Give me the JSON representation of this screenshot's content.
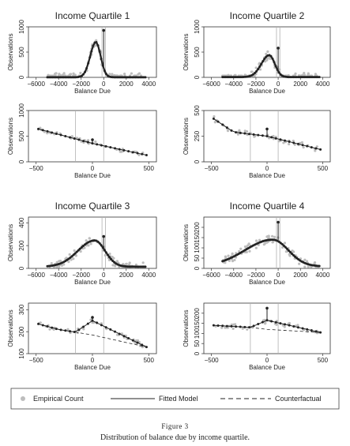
{
  "figure": {
    "caption_label": "Figure 3",
    "caption_text": "Distribution of balance due by income quartile."
  },
  "legend": {
    "empirical": "Empirical Count",
    "fitted": "Fitted Model",
    "counterfactual": "Counterfactual"
  },
  "colors": {
    "empirical": "#bdbdbd",
    "fitted": "#222222",
    "vline": "#b0b0b0"
  },
  "chart_data": [
    {
      "type": "scatter",
      "panel": "q1-wide",
      "title": "Income Quartile 1",
      "xlabel": "Balance Due",
      "ylabel": "Observations",
      "xlim": [
        -6000,
        4000
      ],
      "ylim": [
        0,
        1000
      ],
      "xticks": [
        -6000,
        -4000,
        -2000,
        0,
        2000,
        4000
      ],
      "yticks": [
        0,
        500,
        1000
      ],
      "x_range": [
        -5000,
        3700
      ],
      "peak_x": -700,
      "peak_y": 700,
      "width_left": 700,
      "width_right": 600,
      "base": 2,
      "spike": {
        "x": 0,
        "y": 930
      },
      "vlines": [
        -150,
        150
      ]
    },
    {
      "type": "scatter",
      "panel": "q2-wide",
      "title": "Income Quartile 2",
      "xlabel": "Balance Due",
      "ylabel": "Observations",
      "xlim": [
        -6000,
        4000
      ],
      "ylim": [
        0,
        1000
      ],
      "xticks": [
        -6000,
        -4000,
        -2000,
        0,
        2000,
        4000
      ],
      "yticks": [
        0,
        500,
        1000
      ],
      "x_range": [
        -5000,
        3700
      ],
      "peak_x": -800,
      "peak_y": 440,
      "width_left": 1000,
      "width_right": 700,
      "base": 5,
      "spike": {
        "x": 0,
        "y": 580
      },
      "vlines": [
        -150,
        150
      ]
    },
    {
      "type": "scatter",
      "panel": "q1-zoom",
      "xlabel": "Balance Due",
      "ylabel": "Observations",
      "xlim": [
        -500,
        500
      ],
      "ylim": [
        0,
        1000
      ],
      "xticks": [
        -500,
        0,
        500
      ],
      "yticks": [
        0,
        500,
        1000
      ],
      "line_left": [
        [
          -480,
          640
        ],
        [
          0,
          360
        ]
      ],
      "line_right": [
        [
          0,
          360
        ],
        [
          480,
          130
        ]
      ],
      "spike": {
        "x": 0,
        "y": 430
      },
      "vlines": [
        -150,
        100
      ]
    },
    {
      "type": "scatter",
      "panel": "q2-zoom",
      "xlabel": "Balance Due",
      "ylabel": "Observations",
      "xlim": [
        -500,
        500
      ],
      "ylim": [
        0,
        500
      ],
      "xticks": [
        -500,
        0,
        500
      ],
      "yticks": [
        0,
        250,
        500
      ],
      "line_left": [
        [
          -480,
          420
        ],
        [
          -300,
          290
        ],
        [
          0,
          250
        ]
      ],
      "line_right": [
        [
          0,
          250
        ],
        [
          480,
          120
        ]
      ],
      "spike": {
        "x": 0,
        "y": 320
      },
      "vlines": [
        -150,
        100
      ]
    },
    {
      "type": "scatter",
      "panel": "q3-wide",
      "title": "Income Quartile 3",
      "xlabel": "Balance Due",
      "ylabel": "Observations",
      "xlim": [
        -6000,
        4000
      ],
      "ylim": [
        0,
        450
      ],
      "xticks": [
        -6000,
        -4000,
        -2000,
        0,
        2000,
        4000
      ],
      "yticks": [
        0,
        200,
        400
      ],
      "x_range": [
        -5000,
        3700
      ],
      "peak_x": -800,
      "peak_y": 245,
      "width_left": 2100,
      "width_right": 1300,
      "base": 15,
      "spike": {
        "x": 0,
        "y": 280
      },
      "vlines": [
        -150,
        150
      ]
    },
    {
      "type": "scatter",
      "panel": "q4-wide",
      "title": "Income Quartile 4",
      "xlabel": "Balance Due",
      "ylabel": "Observations",
      "xlim": [
        -6000,
        4000
      ],
      "ylim": [
        0,
        250
      ],
      "xticks": [
        -6000,
        -4000,
        -2000,
        0,
        2000,
        4000
      ],
      "yticks": [
        0,
        50,
        100,
        150,
        200
      ],
      "x_range": [
        -5000,
        3700
      ],
      "peak_x": -500,
      "peak_y": 140,
      "width_left": 3500,
      "width_right": 2000,
      "base": 10,
      "spike": {
        "x": 0,
        "y": 225
      },
      "vlines": [
        -150,
        150
      ]
    },
    {
      "type": "scatter",
      "panel": "q3-zoom",
      "xlabel": "Balance Due",
      "ylabel": "Observations",
      "xlim": [
        -500,
        500
      ],
      "ylim": [
        100,
        330
      ],
      "xticks": [
        -500,
        0,
        500
      ],
      "yticks": [
        100,
        200,
        300
      ],
      "line_left": [
        [
          -480,
          235
        ],
        [
          -300,
          210
        ],
        [
          -150,
          198
        ],
        [
          0,
          250
        ]
      ],
      "line_right": [
        [
          0,
          250
        ],
        [
          480,
          130
        ]
      ],
      "counterfactual": [
        [
          -300,
          210
        ],
        [
          0,
          185
        ],
        [
          480,
          130
        ]
      ],
      "spike": {
        "x": 0,
        "y": 265
      },
      "vlines": [
        -150,
        100
      ]
    },
    {
      "type": "scatter",
      "panel": "q4-zoom",
      "xlabel": "Balance Due",
      "ylabel": "Observations",
      "xlim": [
        -500,
        500
      ],
      "ylim": [
        0,
        250
      ],
      "xticks": [
        -500,
        0,
        500
      ],
      "yticks": [
        0,
        50,
        100,
        150,
        200
      ],
      "line_left": [
        [
          -480,
          140
        ],
        [
          -150,
          130
        ],
        [
          0,
          165
        ]
      ],
      "line_right": [
        [
          0,
          165
        ],
        [
          480,
          105
        ]
      ],
      "counterfactual": [
        [
          -150,
          130
        ],
        [
          0,
          120
        ],
        [
          480,
          105
        ]
      ],
      "spike": {
        "x": 0,
        "y": 225
      },
      "vlines": [
        -150,
        100
      ]
    }
  ]
}
